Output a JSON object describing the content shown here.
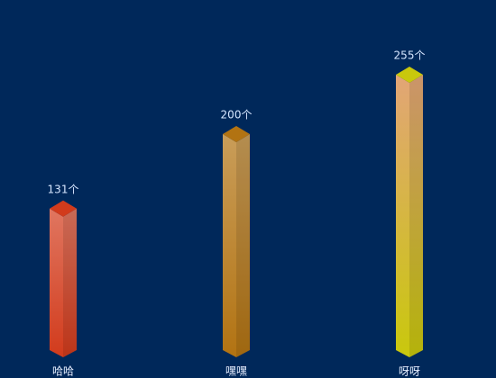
{
  "chart_data": {
    "type": "bar3d",
    "categories": [
      "哈哈",
      "嘿嘿",
      "呀呀"
    ],
    "values": [
      131,
      200,
      255
    ],
    "value_labels": [
      "131个",
      "200个",
      "255个"
    ],
    "colors": [
      "#d23b1c",
      "#b27312",
      "#c9c80c"
    ]
  }
}
